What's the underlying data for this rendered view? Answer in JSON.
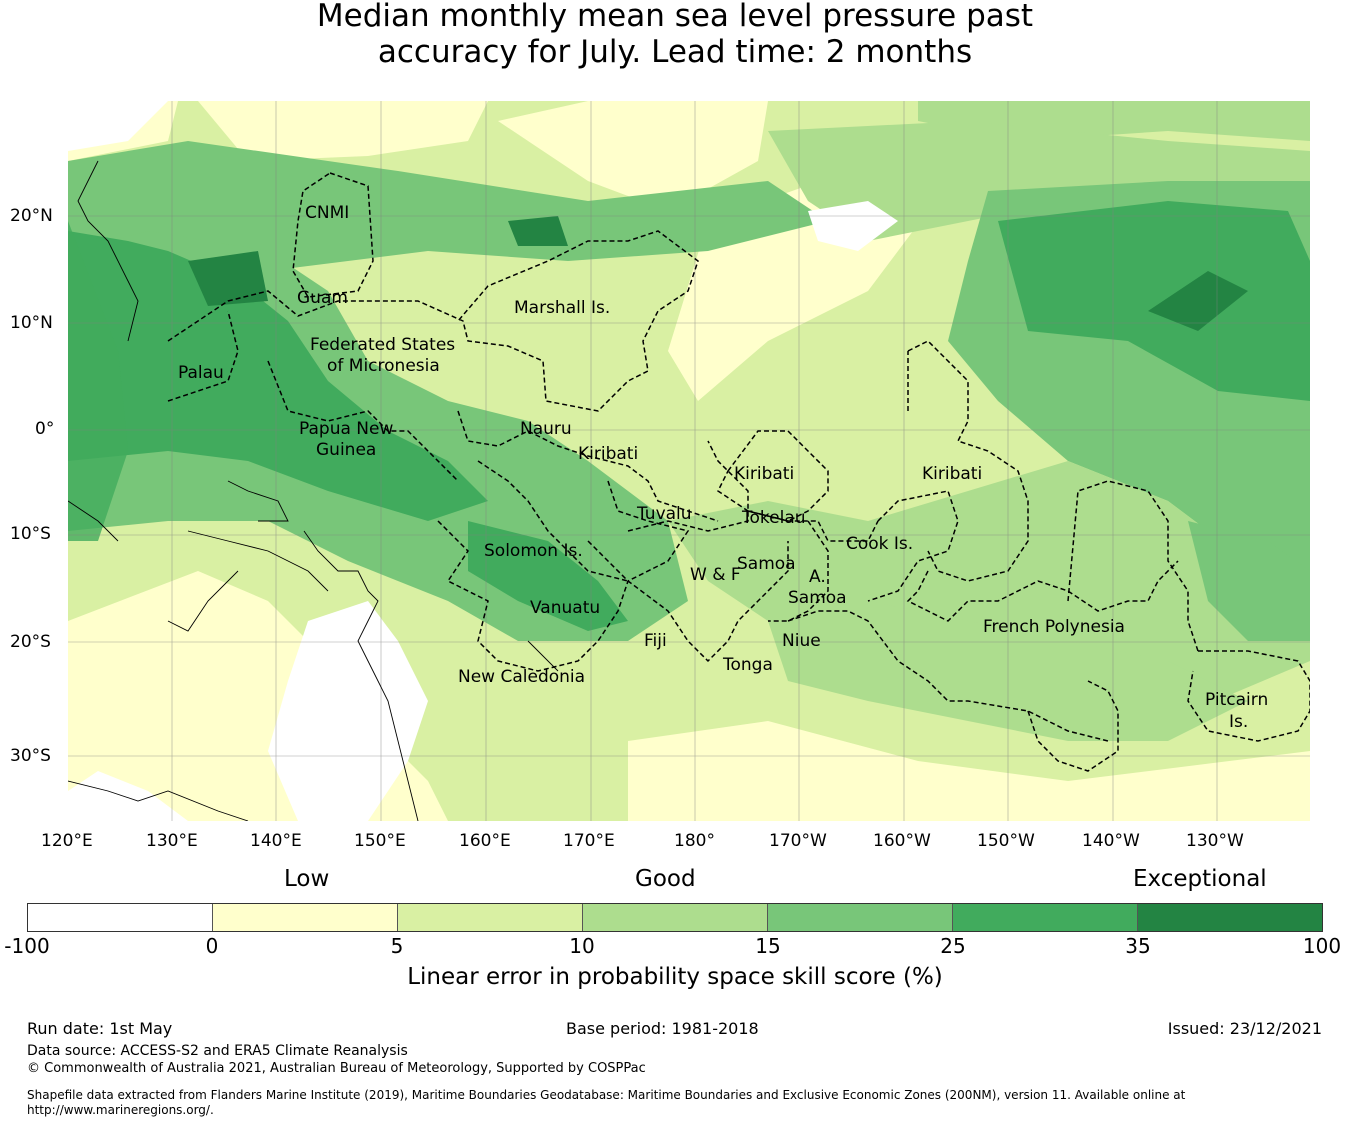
{
  "title": {
    "line1": "Median monthly mean sea level pressure past",
    "line2": "accuracy for July. Lead time: 2 months"
  },
  "map": {
    "longitude_ticks": [
      "120°E",
      "130°E",
      "140°E",
      "150°E",
      "160°E",
      "170°E",
      "180°",
      "170°W",
      "160°W",
      "150°W",
      "140°W",
      "130°W"
    ],
    "latitude_ticks": [
      "20°N",
      "10°N",
      "0°",
      "10°S",
      "20°S",
      "30°S"
    ],
    "regions": {
      "cnmi": "CNMI",
      "guam": "Guam",
      "marshall": "Marshall Is.",
      "fsm1": "Federated States",
      "fsm2": "of Micronesia",
      "palau": "Palau",
      "png1": "Papua New",
      "png2": "Guinea",
      "nauru": "Nauru",
      "kiribati_w": "Kiribati",
      "kiribati_c": "Kiribati",
      "kiribati_e": "Kiribati",
      "tuvalu": "Tuvalu",
      "tokelau": "Tokelau",
      "solomon": "Solomon Is.",
      "samoa": "Samoa",
      "wf": "W & F",
      "asamoa1": "A.",
      "asamoa2": "Samoa",
      "cook": "Cook Is.",
      "vanuatu": "Vanuatu",
      "fiji": "Fiji",
      "niue": "Niue",
      "tonga": "Tonga",
      "french_polynesia": "French Polynesia",
      "new_caledonia": "New Caledonia",
      "pitcairn1": "Pitcairn",
      "pitcairn2": "Is."
    },
    "colors": {
      "lt_minus100_0": "#ffffff",
      "c0_5": "#ffffcc",
      "c5_10": "#d9f0a3",
      "c10_15": "#addd8e",
      "c15_25": "#78c679",
      "c25_35": "#41ab5d",
      "c35_100": "#238443"
    }
  },
  "colorbar": {
    "categories": {
      "low": "Low",
      "good": "Good",
      "exceptional": "Exceptional"
    },
    "ticks": [
      "-100",
      "0",
      "5",
      "10",
      "15",
      "25",
      "35",
      "100"
    ],
    "label": "Linear error in probability space skill score (%)"
  },
  "footer": {
    "run_date": "Run date: 1st May",
    "base_period": "Base period: 1981-2018",
    "issued": "Issued: 23/12/2021",
    "data_source": "Data source: ACCESS-S2 and ERA5 Climate Reanalysis",
    "copyright": "© Commonwealth of Australia 2021, Australian Bureau of Meteorology, Supported by COSPPac",
    "shapefile1": "Shapefile data extracted from Flanders Marine Institute (2019), Maritime Boundaries Geodatabase: Maritime Boundaries and Exclusive Economic Zones (200NM), version 11. Available online at",
    "shapefile2": "http://www.marineregions.org/."
  }
}
